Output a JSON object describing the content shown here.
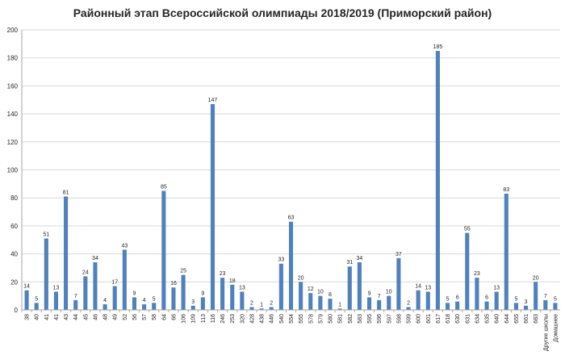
{
  "chart_data": {
    "type": "bar",
    "title": "Районный этап Всероссийской олимпиады 2018/2019 (Приморский район)",
    "xlabel": "",
    "ylabel": "",
    "ylim": [
      0,
      200
    ],
    "yticks": [
      0,
      20,
      40,
      60,
      80,
      100,
      120,
      140,
      160,
      180,
      200
    ],
    "grid": true,
    "legend": "none",
    "colors": {
      "bar": "#4F81BD",
      "grid": "#D9D9D9",
      "axis": "#A6A6A6",
      "text": "#262626"
    },
    "categories": [
      "38",
      "40",
      "41",
      "41",
      "43",
      "44",
      "45",
      "46",
      "48",
      "49",
      "52",
      "56",
      "57",
      "58",
      "64",
      "66",
      "106",
      "109",
      "113",
      "116",
      "246",
      "253",
      "320",
      "428",
      "438",
      "446",
      "540",
      "554",
      "555",
      "578",
      "579",
      "580",
      "581",
      "582",
      "583",
      "595",
      "596",
      "597",
      "598",
      "599",
      "600",
      "601",
      "617",
      "618",
      "630",
      "631",
      "634",
      "635",
      "640",
      "644",
      "655",
      "661",
      "683",
      "Другие школы",
      "Домашнее"
    ],
    "values": [
      14,
      5,
      51,
      13,
      81,
      7,
      24,
      34,
      4,
      17,
      43,
      9,
      4,
      5,
      85,
      16,
      25,
      3,
      9,
      147,
      23,
      18,
      13,
      2,
      1,
      2,
      33,
      63,
      20,
      12,
      10,
      8,
      1,
      31,
      34,
      9,
      7,
      10,
      37,
      2,
      14,
      13,
      185,
      5,
      6,
      55,
      23,
      6,
      13,
      83,
      5,
      3,
      20,
      7,
      5
    ]
  }
}
